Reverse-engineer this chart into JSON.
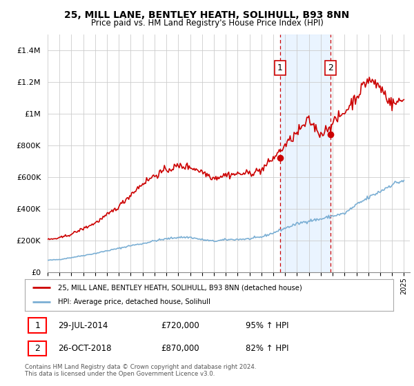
{
  "title": "25, MILL LANE, BENTLEY HEATH, SOLIHULL, B93 8NN",
  "subtitle": "Price paid vs. HM Land Registry's House Price Index (HPI)",
  "legend_line1": "25, MILL LANE, BENTLEY HEATH, SOLIHULL, B93 8NN (detached house)",
  "legend_line2": "HPI: Average price, detached house, Solihull",
  "annotation1_date": "29-JUL-2014",
  "annotation1_price": "£720,000",
  "annotation1_hpi": "95% ↑ HPI",
  "annotation2_date": "26-OCT-2018",
  "annotation2_price": "£870,000",
  "annotation2_hpi": "82% ↑ HPI",
  "footnote": "Contains HM Land Registry data © Crown copyright and database right 2024.\nThis data is licensed under the Open Government Licence v3.0.",
  "property_color": "#cc0000",
  "hpi_color": "#7bafd4",
  "shade_color": "#ddeeff",
  "vline_color": "#cc0000",
  "ylim": [
    0,
    1500000
  ],
  "yticks": [
    0,
    200000,
    400000,
    600000,
    800000,
    1000000,
    1200000,
    1400000
  ],
  "ytick_labels": [
    "£0",
    "£200K",
    "£400K",
    "£600K",
    "£800K",
    "£1M",
    "£1.2M",
    "£1.4M"
  ],
  "sale1_year": 2014.57,
  "sale1_price": 720000,
  "sale2_year": 2018.82,
  "sale2_price": 870000
}
